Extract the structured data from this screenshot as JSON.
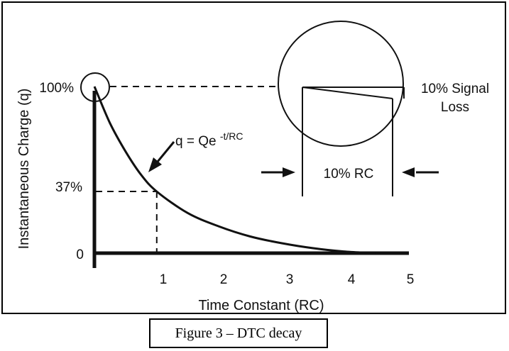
{
  "caption": "Figure 3 – DTC decay",
  "chart_data": {
    "type": "line",
    "title": "",
    "xlabel": "Time Constant (RC)",
    "ylabel": "Instantaneous Charge (q)",
    "xlim": [
      0,
      5
    ],
    "ylim": [
      0,
      100
    ],
    "x_ticks": [
      "1",
      "2",
      "3",
      "4",
      "5"
    ],
    "y_ticks": [
      "100%",
      "37%",
      "0"
    ],
    "series": [
      {
        "x": [
          0,
          0.25,
          0.5,
          0.75,
          1,
          1.5,
          2,
          2.5,
          3,
          3.5,
          4,
          4.5
        ],
        "values": [
          100,
          78,
          61,
          47,
          37,
          24,
          16,
          10,
          6,
          3,
          1,
          0
        ]
      }
    ],
    "equation": {
      "base": "q = Qe",
      "exponent": "-t/RC"
    },
    "marker_point": {
      "x": 1,
      "y": 37
    },
    "inset": {
      "loss_label_line1": "10% Signal",
      "loss_label_line2": "Loss",
      "rc_label": "10% RC"
    },
    "colors": {
      "ink": "#111111"
    }
  }
}
